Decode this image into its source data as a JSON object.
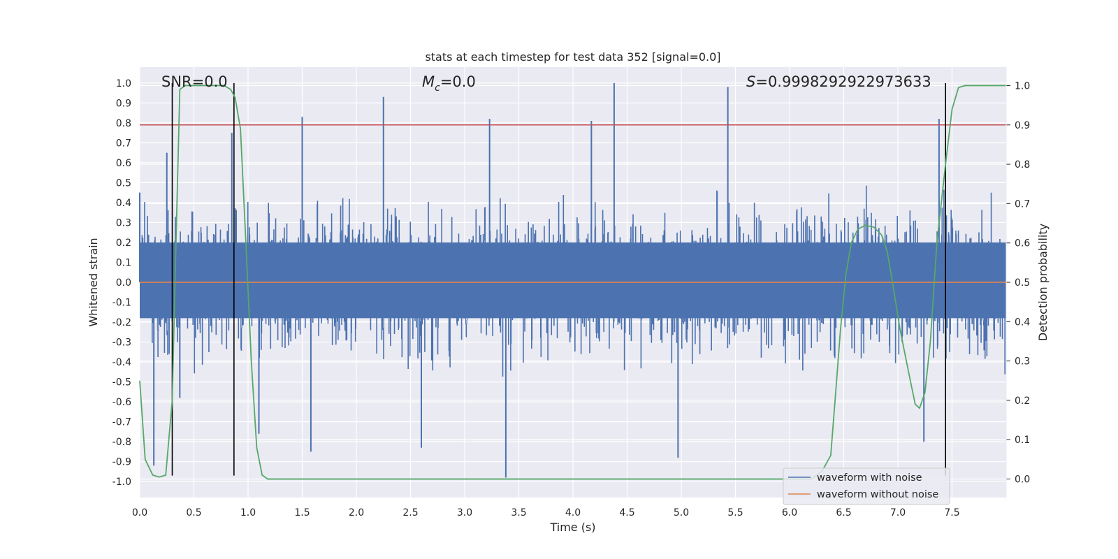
{
  "chart_data": {
    "type": "line",
    "title": "stats at each timestep for test data 352 [signal=0.0]",
    "xlabel": "Time (s)",
    "ylabel": "Whitened strain",
    "y2label": "Detection probability",
    "xlim": [
      0.0,
      8.0
    ],
    "ylim": [
      -1.08,
      1.08
    ],
    "y2lim": [
      -0.047,
      1.047
    ],
    "xticks": [
      "0.0",
      "0.5",
      "1.0",
      "1.5",
      "2.0",
      "2.5",
      "3.0",
      "3.5",
      "4.0",
      "4.5",
      "5.0",
      "5.5",
      "6.0",
      "6.5",
      "7.0",
      "7.5"
    ],
    "yticks": [
      "1.0",
      "0.9",
      "0.8",
      "0.7",
      "0.6",
      "0.5",
      "0.4",
      "0.3",
      "0.2",
      "0.1",
      "0.0",
      "-0.1",
      "-0.2",
      "-0.3",
      "-0.4",
      "-0.5",
      "-0.6",
      "-0.7",
      "-0.8",
      "-0.9",
      "-1.0"
    ],
    "y2ticks": [
      "1.0",
      "0.9",
      "0.8",
      "0.7",
      "0.6",
      "0.5",
      "0.4",
      "0.3",
      "0.2",
      "0.1",
      "0.0"
    ],
    "annotations": {
      "snr": "SNR=0.0",
      "mc_symbol": "M",
      "mc_sub": "c",
      "mc_value": "=0.0",
      "s_symbol": "S",
      "s_value": "=0.9998292922973633"
    },
    "threshold": {
      "y2": 0.9,
      "color": "#c44e52"
    },
    "vertical_lines": [
      0.3,
      0.87,
      7.44
    ],
    "series": [
      {
        "name": "waveform with noise",
        "color": "#4c72b0",
        "envelope_points": [
          {
            "x": 0.0,
            "y": 0.45
          },
          {
            "x": 0.13,
            "y": -0.92
          },
          {
            "x": 0.25,
            "y": 0.65
          },
          {
            "x": 0.37,
            "y": -0.58
          },
          {
            "x": 0.85,
            "y": 0.75
          },
          {
            "x": 1.1,
            "y": -0.76
          },
          {
            "x": 1.5,
            "y": 0.83
          },
          {
            "x": 1.58,
            "y": -0.85
          },
          {
            "x": 2.25,
            "y": 0.93
          },
          {
            "x": 2.6,
            "y": -0.83
          },
          {
            "x": 3.23,
            "y": 0.82
          },
          {
            "x": 3.38,
            "y": -0.98
          },
          {
            "x": 4.17,
            "y": 0.81
          },
          {
            "x": 4.38,
            "y": 1.0
          },
          {
            "x": 4.97,
            "y": -0.88
          },
          {
            "x": 5.43,
            "y": 0.98
          },
          {
            "x": 7.24,
            "y": -0.8
          },
          {
            "x": 7.38,
            "y": 0.82
          }
        ],
        "typical_amplitude": 0.4
      },
      {
        "name": "waveform without noise",
        "color": "#dd8452",
        "x": [
          0.0,
          8.0
        ],
        "y": [
          0.0,
          0.0
        ]
      },
      {
        "name": "detection probability",
        "color": "#55a868",
        "axis": "right",
        "x": [
          0.0,
          0.05,
          0.12,
          0.18,
          0.24,
          0.3,
          0.33,
          0.37,
          0.42,
          0.5,
          0.6,
          0.7,
          0.78,
          0.84,
          0.88,
          0.93,
          0.98,
          1.03,
          1.08,
          1.13,
          1.18,
          1.25,
          1.5,
          2.0,
          3.0,
          4.0,
          5.0,
          6.0,
          6.2,
          6.3,
          6.38,
          6.42,
          6.47,
          6.52,
          6.57,
          6.63,
          6.7,
          6.78,
          6.85,
          6.9,
          6.95,
          7.02,
          7.1,
          7.16,
          7.2,
          7.25,
          7.3,
          7.36,
          7.44,
          7.5,
          7.56,
          7.62,
          7.7,
          8.0
        ],
        "y": [
          0.25,
          0.05,
          0.01,
          0.005,
          0.01,
          0.2,
          0.55,
          0.99,
          1.0,
          1.0,
          1.0,
          1.0,
          1.0,
          0.99,
          0.97,
          0.89,
          0.6,
          0.3,
          0.08,
          0.01,
          0.0,
          0.0,
          0.0,
          0.0,
          0.0,
          0.0,
          0.0,
          0.0,
          0.0,
          0.02,
          0.06,
          0.2,
          0.38,
          0.52,
          0.6,
          0.635,
          0.645,
          0.64,
          0.62,
          0.58,
          0.5,
          0.38,
          0.27,
          0.19,
          0.18,
          0.22,
          0.35,
          0.6,
          0.8,
          0.94,
          0.995,
          1.0,
          1.0,
          1.0
        ]
      }
    ],
    "legend": {
      "placement": "lower-right",
      "entries": [
        {
          "label": "waveform with noise",
          "color": "#4c72b0"
        },
        {
          "label": "waveform without noise",
          "color": "#dd8452"
        }
      ]
    },
    "grid": true
  }
}
